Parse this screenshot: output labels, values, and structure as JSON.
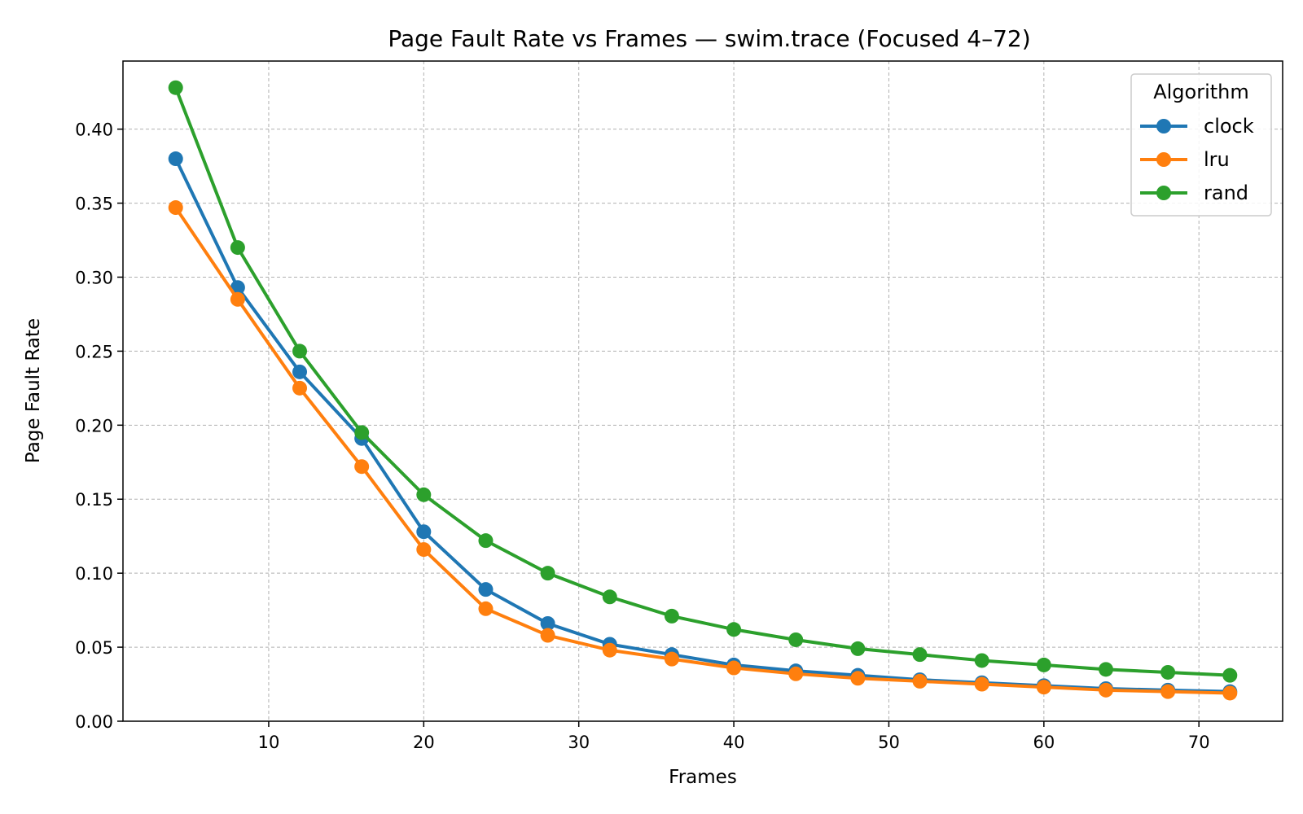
{
  "chart_data": {
    "type": "line",
    "title": "Page Fault Rate vs Frames — swim.trace (Focused 4–72)",
    "xlabel": "Frames",
    "ylabel": "Page Fault Rate",
    "xlim": [
      0.6,
      75.4
    ],
    "ylim": [
      0,
      0.446
    ],
    "xticks": [
      10,
      20,
      30,
      40,
      50,
      60,
      70
    ],
    "yticks": [
      0.0,
      0.05,
      0.1,
      0.15,
      0.2,
      0.25,
      0.3,
      0.35,
      0.4
    ],
    "grid": true,
    "legend": {
      "title": "Algorithm",
      "placement": "top-right"
    },
    "x": [
      4,
      8,
      12,
      16,
      20,
      24,
      28,
      32,
      36,
      40,
      44,
      48,
      52,
      56,
      60,
      64,
      68,
      72
    ],
    "series": [
      {
        "name": "clock",
        "color": "#1f77b4",
        "values": [
          0.38,
          0.293,
          0.236,
          0.191,
          0.128,
          0.089,
          0.066,
          0.052,
          0.045,
          0.038,
          0.034,
          0.031,
          0.028,
          0.026,
          0.024,
          0.022,
          0.021,
          0.02
        ]
      },
      {
        "name": "lru",
        "color": "#ff7f0e",
        "values": [
          0.347,
          0.285,
          0.225,
          0.172,
          0.116,
          0.076,
          0.058,
          0.048,
          0.042,
          0.036,
          0.032,
          0.029,
          0.027,
          0.025,
          0.023,
          0.021,
          0.02,
          0.019
        ]
      },
      {
        "name": "rand",
        "color": "#2ca02c",
        "values": [
          0.428,
          0.32,
          0.25,
          0.195,
          0.153,
          0.122,
          0.1,
          0.084,
          0.071,
          0.062,
          0.055,
          0.049,
          0.045,
          0.041,
          0.038,
          0.035,
          0.033,
          0.031
        ]
      }
    ]
  }
}
